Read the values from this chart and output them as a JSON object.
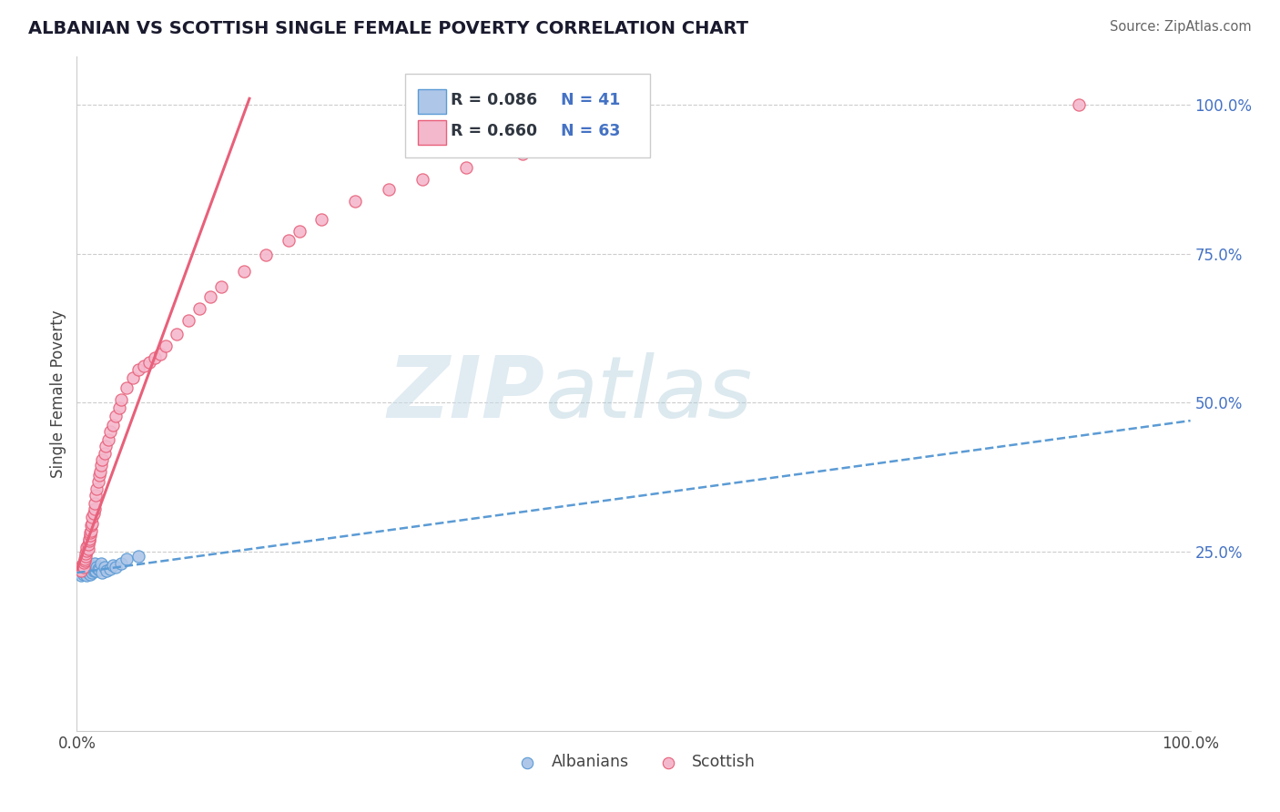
{
  "title": "ALBANIAN VS SCOTTISH SINGLE FEMALE POVERTY CORRELATION CHART",
  "source": "Source: ZipAtlas.com",
  "ylabel": "Single Female Poverty",
  "legend_r_albanian": "R = 0.086",
  "legend_n_albanian": "N = 41",
  "legend_r_scottish": "R = 0.660",
  "legend_n_scottish": "N = 63",
  "albanian_color": "#aec6e8",
  "albanian_edge_color": "#5b9bd5",
  "scottish_color": "#f4b8cc",
  "scottish_edge_color": "#e8607a",
  "albanian_line_color": "#5b9bd5",
  "scottish_line_color": "#e8607a",
  "watermark_zip": "ZIP",
  "watermark_atlas": "atlas",
  "grid_color": "#cccccc",
  "background_color": "#ffffff",
  "legend_text_color": "#2f3640",
  "legend_n_color": "#4472c4",
  "ytick_color": "#4472c4",
  "albanian_scatter_x": [
    0.003,
    0.003,
    0.004,
    0.005,
    0.005,
    0.006,
    0.006,
    0.007,
    0.007,
    0.007,
    0.008,
    0.008,
    0.009,
    0.009,
    0.01,
    0.01,
    0.011,
    0.011,
    0.012,
    0.012,
    0.013,
    0.013,
    0.014,
    0.014,
    0.015,
    0.016,
    0.016,
    0.017,
    0.018,
    0.019,
    0.02,
    0.022,
    0.023,
    0.025,
    0.027,
    0.03,
    0.032,
    0.035,
    0.04,
    0.045,
    0.055
  ],
  "albanian_scatter_y": [
    0.215,
    0.22,
    0.21,
    0.218,
    0.225,
    0.212,
    0.222,
    0.215,
    0.22,
    0.23,
    0.218,
    0.225,
    0.21,
    0.228,
    0.215,
    0.222,
    0.218,
    0.226,
    0.212,
    0.22,
    0.222,
    0.228,
    0.215,
    0.225,
    0.218,
    0.22,
    0.23,
    0.218,
    0.225,
    0.222,
    0.22,
    0.23,
    0.215,
    0.225,
    0.218,
    0.222,
    0.228,
    0.225,
    0.23,
    0.238,
    0.242
  ],
  "albanian_line_x0": 0.0,
  "albanian_line_y0": 0.215,
  "albanian_line_x1": 1.0,
  "albanian_line_y1": 0.47,
  "scottish_scatter_x": [
    0.003,
    0.004,
    0.005,
    0.006,
    0.006,
    0.007,
    0.007,
    0.008,
    0.008,
    0.009,
    0.009,
    0.01,
    0.01,
    0.011,
    0.011,
    0.012,
    0.012,
    0.013,
    0.013,
    0.014,
    0.014,
    0.015,
    0.016,
    0.016,
    0.017,
    0.018,
    0.019,
    0.02,
    0.021,
    0.022,
    0.023,
    0.025,
    0.026,
    0.028,
    0.03,
    0.032,
    0.035,
    0.038,
    0.04,
    0.045,
    0.05,
    0.055,
    0.06,
    0.065,
    0.07,
    0.075,
    0.08,
    0.09,
    0.1,
    0.11,
    0.12,
    0.13,
    0.15,
    0.17,
    0.19,
    0.2,
    0.22,
    0.25,
    0.28,
    0.31,
    0.35,
    0.4,
    0.9
  ],
  "scottish_scatter_y": [
    0.222,
    0.218,
    0.228,
    0.225,
    0.232,
    0.235,
    0.238,
    0.242,
    0.248,
    0.252,
    0.258,
    0.255,
    0.262,
    0.268,
    0.272,
    0.278,
    0.282,
    0.285,
    0.295,
    0.298,
    0.308,
    0.315,
    0.322,
    0.332,
    0.345,
    0.355,
    0.368,
    0.378,
    0.385,
    0.395,
    0.405,
    0.415,
    0.428,
    0.438,
    0.452,
    0.462,
    0.478,
    0.492,
    0.505,
    0.525,
    0.542,
    0.555,
    0.562,
    0.568,
    0.575,
    0.582,
    0.595,
    0.615,
    0.638,
    0.658,
    0.678,
    0.695,
    0.72,
    0.748,
    0.772,
    0.788,
    0.808,
    0.838,
    0.858,
    0.875,
    0.895,
    0.918,
    1.0
  ],
  "scottish_line_x0": 0.0,
  "scottish_line_y0": 0.22,
  "scottish_line_x1": 0.155,
  "scottish_line_y1": 1.01,
  "xlim": [
    0.0,
    1.0
  ],
  "ylim": [
    -0.05,
    1.08
  ],
  "yticks": [
    0.25,
    0.5,
    0.75,
    1.0
  ],
  "ytick_labels": [
    "25.0%",
    "50.0%",
    "75.0%",
    "100.0%"
  ]
}
